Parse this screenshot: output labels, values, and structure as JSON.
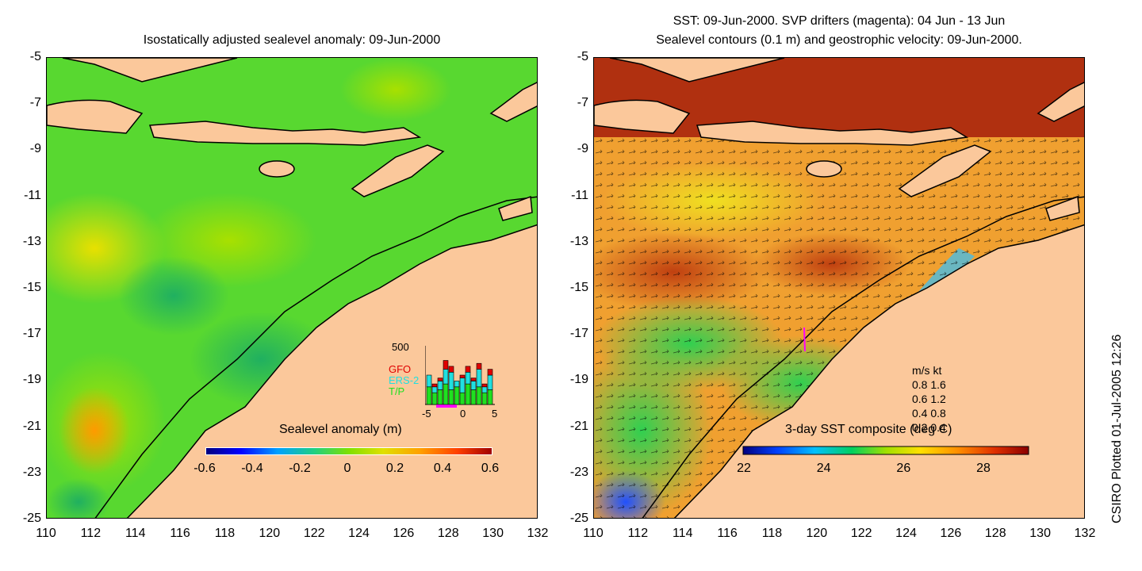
{
  "left": {
    "title": "Isostatically adjusted sealevel anomaly: 09-Jun-2000",
    "colorbar": {
      "title": "Sealevel anomaly (m)",
      "ticks": [
        "-0.6",
        "-0.4",
        "-0.2",
        "0",
        "0.2",
        "0.4",
        "0.6"
      ]
    },
    "inset": {
      "ymax_label": "500",
      "legend": [
        "GFO",
        "ERS-2",
        "T/P"
      ],
      "legend_colors": [
        "#e00000",
        "#20e0e0",
        "#20e020"
      ],
      "x_ticks": [
        "-5",
        "0",
        "5"
      ],
      "bars": [
        {
          "tp": 0.3,
          "ers": 0.2,
          "gfo": 0.0
        },
        {
          "tp": 0.2,
          "ers": 0.1,
          "gfo": 0.05
        },
        {
          "tp": 0.25,
          "ers": 0.15,
          "gfo": 0.05
        },
        {
          "tp": 0.35,
          "ers": 0.25,
          "gfo": 0.15
        },
        {
          "tp": 0.25,
          "ers": 0.3,
          "gfo": 0.1
        },
        {
          "tp": 0.3,
          "ers": 0.1,
          "gfo": 0.0
        },
        {
          "tp": 0.2,
          "ers": 0.25,
          "gfo": 0.05
        },
        {
          "tp": 0.35,
          "ers": 0.2,
          "gfo": 0.1
        },
        {
          "tp": 0.25,
          "ers": 0.15,
          "gfo": 0.05
        },
        {
          "tp": 0.3,
          "ers": 0.3,
          "gfo": 0.1
        },
        {
          "tp": 0.2,
          "ers": 0.1,
          "gfo": 0.05
        },
        {
          "tp": 0.25,
          "ers": 0.25,
          "gfo": 0.1
        }
      ]
    }
  },
  "right": {
    "title_line1": "SST: 09-Jun-2000. SVP drifters (magenta): 04 Jun - 13 Jun",
    "title_line2": "Sealevel contours (0.1 m) and geostrophic velocity: 09-Jun-2000.",
    "colorbar": {
      "title": "3-day SST composite (deg C)",
      "ticks": [
        "22",
        "24",
        "26",
        "28"
      ]
    },
    "velocity_key": {
      "header": "m/s  kt",
      "rows": [
        "0.8  1.6",
        "0.6  1.2",
        "0.4  0.8",
        "0.2  0.4"
      ]
    }
  },
  "axes": {
    "y_ticks": [
      "-5",
      "-7",
      "-9",
      "-11",
      "-13",
      "-15",
      "-17",
      "-19",
      "-21",
      "-23",
      "-25"
    ],
    "x_ticks": [
      "110",
      "112",
      "114",
      "116",
      "118",
      "120",
      "122",
      "124",
      "126",
      "128",
      "130",
      "132"
    ]
  },
  "footer": "CSIRO Plotted 01-Jul-2005 12:26",
  "colors": {
    "land": "#fbc89b",
    "sla_base": "#58d830",
    "sst_base": "#f0a030",
    "sla_bar": [
      "#00007f",
      "#0000ff",
      "#00a0ff",
      "#20d080",
      "#80e000",
      "#e0e000",
      "#ffa000",
      "#ff4000",
      "#a00000"
    ],
    "sst_bar": [
      "#00007f",
      "#0040ff",
      "#00c0ff",
      "#00d060",
      "#a0e000",
      "#ffe000",
      "#ff9000",
      "#e03000",
      "#8a0000"
    ]
  }
}
